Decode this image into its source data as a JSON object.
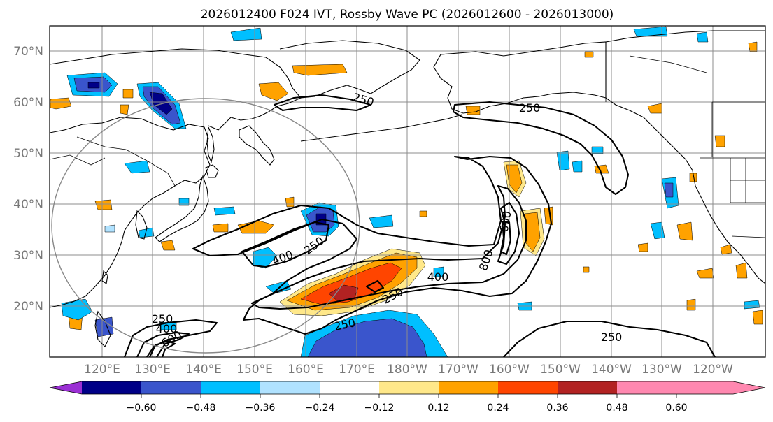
{
  "title": "2026012400 F024 IVT, Rossby Wave PC (2026012600 - 2026013000)",
  "lat_labels": [
    "70°N",
    "60°N",
    "50°N",
    "40°N",
    "30°N",
    "20°N"
  ],
  "lon_labels": [
    "120°E",
    "130°E",
    "140°E",
    "150°E",
    "160°E",
    "170°E",
    "180°W",
    "170°W",
    "160°W",
    "150°W",
    "140°W",
    "130°W",
    "120°W"
  ],
  "colorbar": {
    "colors": [
      "#9b30d4",
      "#000087",
      "#3a55cc",
      "#00bfff",
      "#b0e2ff",
      "#ffffff",
      "#ffe88a",
      "#ffa200",
      "#ff4500",
      "#b22222",
      "#ff88b0"
    ],
    "tick_labels": [
      "−0.60",
      "−0.48",
      "−0.36",
      "−0.24",
      "−0.12",
      "0.12",
      "0.24",
      "0.36",
      "0.48",
      "0.60"
    ]
  },
  "contour_labels": [
    "250",
    "250",
    "400",
    "250",
    "400",
    "250",
    "250",
    "600",
    "800",
    "250",
    "400",
    "600",
    "250"
  ],
  "chart_data": {
    "type": "heatmap",
    "title": "2026012400 F024 IVT, Rossby Wave PC (2026012600 - 2026013000)",
    "projection": "Plate Carree, central longitude 180",
    "lon_range_deg_east": [
      110,
      245
    ],
    "lat_range_deg": [
      10,
      75
    ],
    "fill_variable": "Rossby Wave PC",
    "fill_levels": [
      -0.6,
      -0.48,
      -0.36,
      -0.24,
      -0.12,
      0.12,
      0.24,
      0.36,
      0.48,
      0.6
    ],
    "contour_variable": "IVT",
    "contour_levels": [
      250,
      400,
      600,
      800
    ],
    "grid": true
  }
}
